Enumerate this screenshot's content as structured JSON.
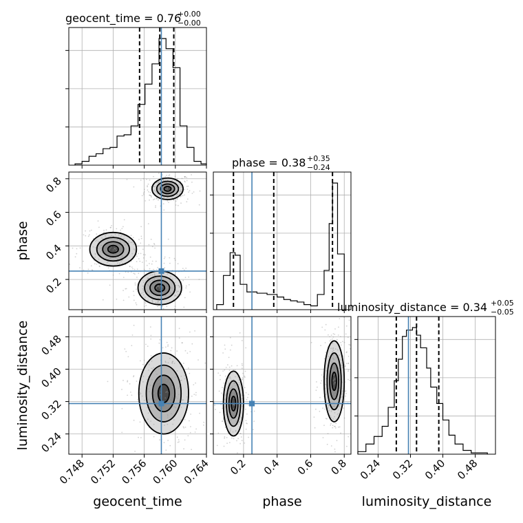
{
  "chart_data": {
    "type": "corner",
    "params": [
      "geocent_time",
      "phase",
      "luminosity_distance"
    ],
    "axis_labels": {
      "geocent_time": "geocent_time",
      "phase": "phase",
      "luminosity_distance": "luminosity_distance"
    },
    "ranges": {
      "geocent_time": [
        0.7463,
        0.764
      ],
      "phase": [
        0.02,
        0.84
      ],
      "luminosity_distance": [
        0.19,
        0.53
      ]
    },
    "ticks": {
      "geocent_time": [
        "0.748",
        "0.752",
        "0.756",
        "0.760",
        "0.764"
      ],
      "phase_x": [
        "0.2",
        "0.4",
        "0.6",
        "0.8"
      ],
      "phase_y": [
        "0.2",
        "0.4",
        "0.6",
        "0.8"
      ],
      "luminosity_distance": [
        "0.24",
        "0.32",
        "0.40",
        "0.48"
      ]
    },
    "titles": {
      "geocent_time": {
        "main": "geocent_time = 0.76",
        "sup": "+0.00",
        "sub": "−0.00"
      },
      "phase": {
        "main": "phase = 0.38",
        "sup": "+0.35",
        "sub": "−0.24"
      },
      "luminosity_distance": {
        "main": "luminosity_distance = 0.34",
        "sup": "+0.05",
        "sub": "−0.05"
      }
    },
    "truths": {
      "geocent_time": 0.7582,
      "phase": 0.25,
      "luminosity_distance": 0.315
    },
    "quantiles": {
      "geocent_time": [
        0.7554,
        0.758,
        0.7598
      ],
      "phase": [
        0.14,
        0.38,
        0.73
      ],
      "luminosity_distance": [
        0.285,
        0.335,
        0.39
      ]
    },
    "histograms": {
      "geocent_time": {
        "edges": [
          0.7471,
          0.748,
          0.7489,
          0.7498,
          0.7507,
          0.7516,
          0.7525,
          0.7534,
          0.7543,
          0.7552,
          0.7561,
          0.757,
          0.7579,
          0.7588,
          0.7597,
          0.7606,
          0.7615,
          0.7624,
          0.7633,
          0.764
        ],
        "counts": [
          1,
          3,
          7,
          9,
          13,
          14,
          23,
          24,
          31,
          48,
          64,
          80,
          100,
          92,
          77,
          31,
          14,
          3,
          1
        ]
      },
      "phase": {
        "edges": [
          0.04,
          0.08,
          0.12,
          0.15,
          0.18,
          0.22,
          0.28,
          0.34,
          0.4,
          0.44,
          0.48,
          0.52,
          0.56,
          0.6,
          0.64,
          0.68,
          0.71,
          0.73,
          0.76,
          0.8
        ],
        "counts": [
          4,
          27,
          45,
          43,
          20,
          14,
          13,
          12,
          10,
          8,
          7,
          6,
          4,
          3,
          12,
          31,
          68,
          100,
          44
        ]
      },
      "luminosity_distance": {
        "edges": [
          0.19,
          0.21,
          0.23,
          0.25,
          0.265,
          0.28,
          0.29,
          0.3,
          0.31,
          0.325,
          0.335,
          0.345,
          0.36,
          0.37,
          0.385,
          0.4,
          0.415,
          0.43,
          0.45,
          0.47,
          0.49,
          0.51
        ],
        "counts": [
          2,
          8,
          14,
          22,
          37,
          58,
          75,
          93,
          98,
          100,
          94,
          84,
          68,
          53,
          40,
          27,
          15,
          8,
          3,
          1,
          1
        ]
      }
    },
    "modes": {
      "geocent_time_vs_phase": [
        {
          "x": 0.759,
          "y": 0.74,
          "sx": 0.001,
          "sy": 0.032
        },
        {
          "x": 0.758,
          "y": 0.15,
          "sx": 0.0014,
          "sy": 0.05
        },
        {
          "x": 0.752,
          "y": 0.38,
          "sx": 0.0015,
          "sy": 0.05
        }
      ],
      "phase_vs_luminosity_distance": [
        {
          "x": 0.14,
          "y": 0.315,
          "sx": 0.03,
          "sy": 0.04
        },
        {
          "x": 0.74,
          "y": 0.37,
          "sx": 0.03,
          "sy": 0.05
        }
      ],
      "geocent_time_vs_luminosity_distance": [
        {
          "x": 0.7585,
          "y": 0.34,
          "sx": 0.0016,
          "sy": 0.05
        }
      ]
    }
  }
}
